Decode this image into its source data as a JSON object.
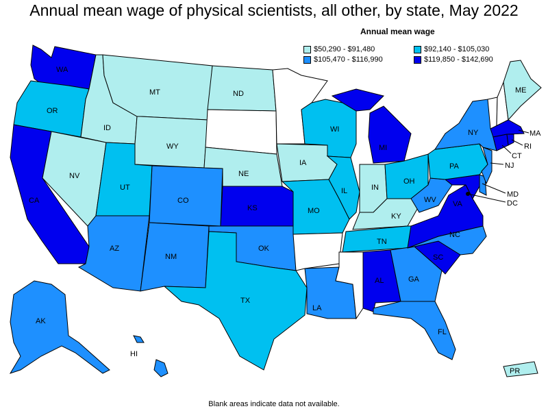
{
  "title": "Annual mean wage of physical scientists, all other, by state, May 2022",
  "legend": {
    "title": "Annual mean wage",
    "items": [
      {
        "label": "$50,290 - $91,480",
        "color": "#b0eeee"
      },
      {
        "label": "$92,140 - $105,030",
        "color": "#00c0f0"
      },
      {
        "label": "$105,470 - $116,990",
        "color": "#1e90ff"
      },
      {
        "label": "$119,850 - $142,690",
        "color": "#0000ee"
      }
    ]
  },
  "footnote": "Blank areas indicate data not available.",
  "states": {
    "WA": "WA",
    "OR": "OR",
    "CA": "CA",
    "NV": "NV",
    "ID": "ID",
    "MT": "MT",
    "WY": "WY",
    "UT": "UT",
    "CO": "CO",
    "AZ": "AZ",
    "NM": "NM",
    "ND": "ND",
    "NE": "NE",
    "KS": "KS",
    "OK": "OK",
    "TX": "TX",
    "IA": "IA",
    "MO": "MO",
    "WI": "WI",
    "IL": "IL",
    "MI": "MI",
    "IN": "IN",
    "OH": "OH",
    "KY": "KY",
    "TN": "TN",
    "AL": "AL",
    "GA": "GA",
    "FL": "FL",
    "SC": "SC",
    "NC": "NC",
    "VA": "VA",
    "WV": "WV",
    "PA": "PA",
    "NY": "NY",
    "ME": "ME",
    "LA": "LA",
    "AK": "AK",
    "HI": "HI",
    "PR": "PR",
    "MA": "MA",
    "RI": "RI",
    "CT": "CT",
    "NJ": "NJ",
    "MD": "MD",
    "DC": "DC"
  },
  "state_class": {
    "WA": 4,
    "OR": 2,
    "CA": 4,
    "NV": 1,
    "ID": 1,
    "MT": 1,
    "WY": 1,
    "UT": 2,
    "CO": 3,
    "AZ": 3,
    "NM": 3,
    "ND": 1,
    "SD": 0,
    "NE": 1,
    "KS": 4,
    "OK": 3,
    "TX": 2,
    "MN": 0,
    "IA": 1,
    "MO": 2,
    "AR": 0,
    "LA": 3,
    "WI": 2,
    "IL": 2,
    "MI": 4,
    "IN": 1,
    "OH": 2,
    "KY": 1,
    "TN": 2,
    "MS": 0,
    "AL": 4,
    "GA": 3,
    "FL": 3,
    "SC": 4,
    "NC": 3,
    "VA": 4,
    "WV": 3,
    "MD": 4,
    "DE": 3,
    "PA": 2,
    "NJ": 3,
    "NY": 3,
    "CT": 4,
    "RI": 4,
    "MA": 4,
    "VT": 0,
    "NH": 0,
    "ME": 1,
    "AK": 3,
    "HI": 3,
    "PR": 1
  }
}
